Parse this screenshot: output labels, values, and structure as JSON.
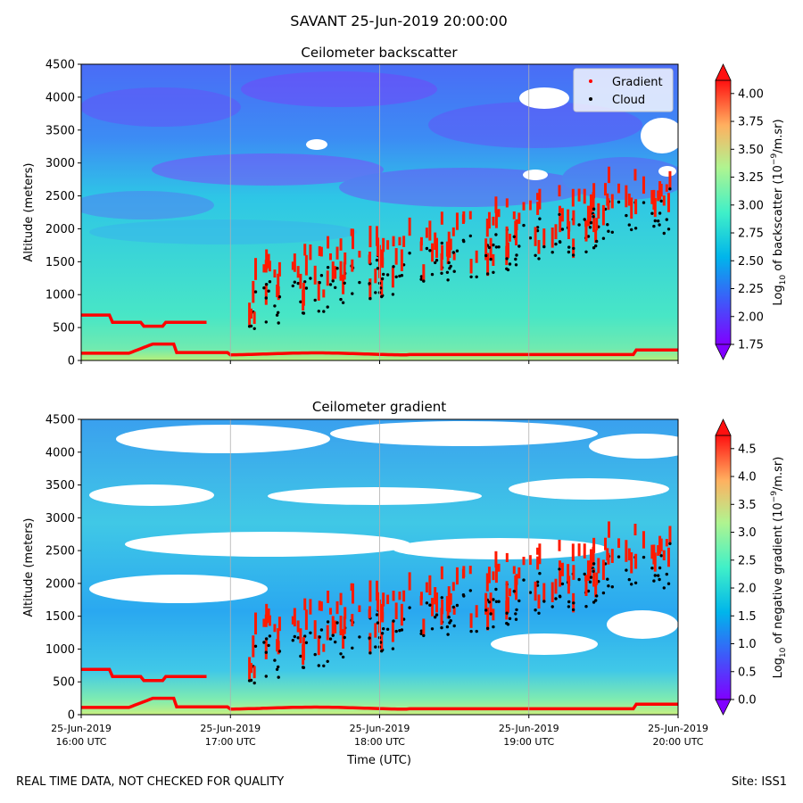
{
  "figure": {
    "title": "SAVANT 25-Jun-2019 20:00:00",
    "footer_left": "REAL TIME DATA, NOT CHECKED FOR QUALITY",
    "footer_right": "Site: ISS1",
    "xlabel": "Time (UTC)",
    "xticks": [
      {
        "date": "25-Jun-2019",
        "time": "16:00 UTC"
      },
      {
        "date": "25-Jun-2019",
        "time": "17:00 UTC"
      },
      {
        "date": "25-Jun-2019",
        "time": "18:00 UTC"
      },
      {
        "date": "25-Jun-2019",
        "time": "19:00 UTC"
      },
      {
        "date": "25-Jun-2019",
        "time": "20:00 UTC"
      }
    ]
  },
  "chart_data": [
    {
      "type": "heatmap",
      "title": "Ceilometer backscatter",
      "ylabel": "Altitude (meters)",
      "xlim": [
        "16:00",
        "20:00"
      ],
      "ylim": [
        0,
        4500
      ],
      "yticks": [
        0,
        500,
        1000,
        1500,
        2000,
        2500,
        3000,
        3500,
        4000,
        4500
      ],
      "grid": "vertical",
      "legend": {
        "placement": "top-right",
        "entries": [
          {
            "label": "Gradient",
            "color": "#ff0000"
          },
          {
            "label": "Cloud",
            "color": "#000000"
          }
        ]
      },
      "colorbar": {
        "label": "Log10 of backscatter (10^-9/m.sr)",
        "label_main": "Log",
        "label_sub": "10",
        "label_rest": " of backscatter (10",
        "label_exp": "−9",
        "label_end": "/m.sr)",
        "min": 1.75,
        "max": 4.0,
        "ticks": [
          "1.75",
          "2.00",
          "2.25",
          "2.50",
          "2.75",
          "3.00",
          "3.25",
          "3.50",
          "3.75",
          "4.00"
        ],
        "extend": "both"
      },
      "series": [
        {
          "name": "Gradient",
          "color": "#ff0000"
        },
        {
          "name": "Cloud",
          "color": "#000000"
        }
      ]
    },
    {
      "type": "heatmap",
      "title": "Ceilometer gradient",
      "ylabel": "Altitude (meters)",
      "xlim": [
        "16:00",
        "20:00"
      ],
      "ylim": [
        0,
        4500
      ],
      "yticks": [
        0,
        500,
        1000,
        1500,
        2000,
        2500,
        3000,
        3500,
        4000,
        4500
      ],
      "grid": "vertical",
      "colorbar": {
        "label": "Log10 of negative gradient (10^-9/m.sr)",
        "label_main": "Log",
        "label_sub": "10",
        "label_rest": " of negative gradient (10",
        "label_exp": "−9",
        "label_end": "/m.sr)",
        "min": 0.0,
        "max": 4.5,
        "ticks": [
          "0.0",
          "0.5",
          "1.0",
          "1.5",
          "2.0",
          "2.5",
          "3.0",
          "3.5",
          "4.0",
          "4.5"
        ],
        "extend": "both"
      }
    }
  ]
}
